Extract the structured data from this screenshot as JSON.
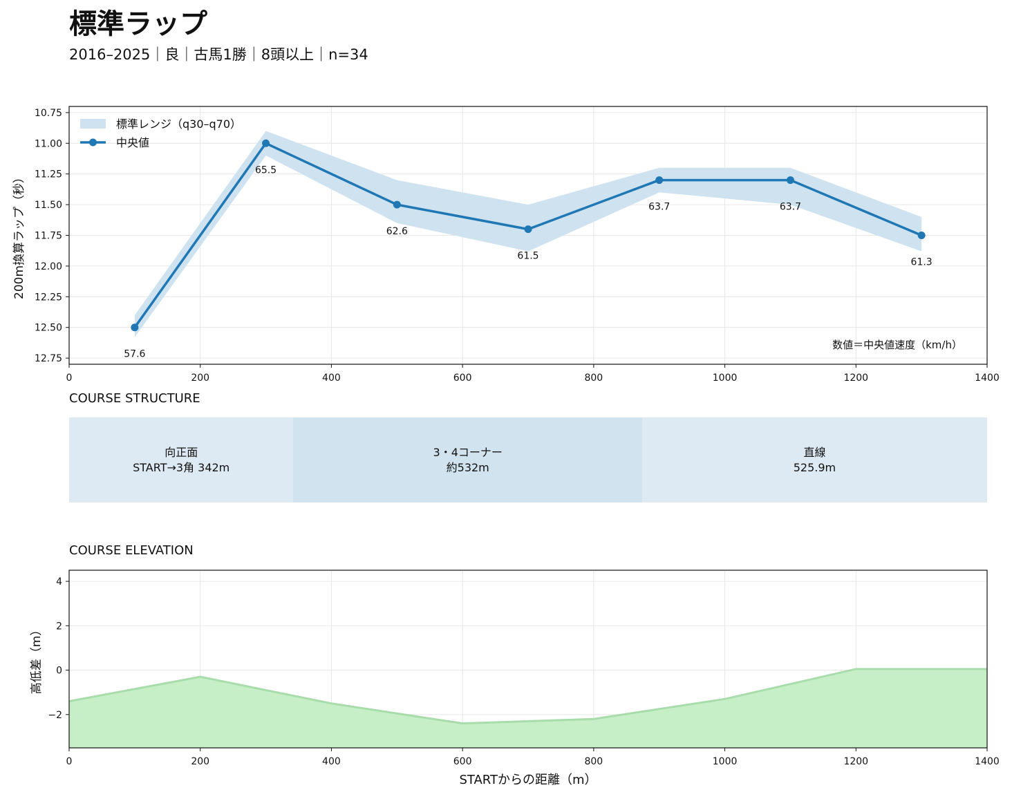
{
  "header": {
    "title": "標準ラップ",
    "subtitle": "2016–2025｜良｜古馬1勝｜8頭以上｜n=34"
  },
  "colors": {
    "line": "#1f77b4",
    "band": "#cfe2f0",
    "segment_light": "#ddeaf4",
    "segment_dark": "#d0e3ee",
    "elevation_fill": "#c6efc8",
    "elevation_line": "#a9dcab",
    "grid": "#e6e6e6"
  },
  "chart_data": [
    {
      "type": "line",
      "ylabel": "200m換算ラップ（秒）",
      "xlim": [
        0,
        1400
      ],
      "ylim": [
        10.7,
        12.8
      ],
      "y_inverted": true,
      "x_ticks": [
        "0",
        "200",
        "400",
        "600",
        "800",
        "1000",
        "1200",
        "1400"
      ],
      "y_ticks": [
        "10.75",
        "11.00",
        "11.25",
        "11.50",
        "11.75",
        "12.00",
        "12.25",
        "12.50",
        "12.75"
      ],
      "grid": true,
      "legend": {
        "placement": "top-left",
        "band_label": "標準レンジ（q30–q70）",
        "line_label": "中央値"
      },
      "annotation": "数値＝中央値速度（km/h）",
      "x": [
        100,
        300,
        500,
        700,
        900,
        1100,
        1300
      ],
      "median": [
        12.5,
        11.0,
        11.5,
        11.7,
        11.3,
        11.3,
        11.75
      ],
      "q30": [
        12.4,
        10.9,
        11.3,
        11.5,
        11.2,
        11.2,
        11.6
      ],
      "q70": [
        12.58,
        11.1,
        11.65,
        11.88,
        11.4,
        11.5,
        11.88
      ],
      "speed_labels": [
        "57.6",
        "65.5",
        "62.6",
        "61.5",
        "63.7",
        "63.7",
        "61.3"
      ]
    },
    {
      "type": "area",
      "title": "COURSE ELEVATION",
      "ylabel": "高低差（m）",
      "xlabel": "STARTからの距離（m）",
      "xlim": [
        0,
        1400
      ],
      "ylim": [
        -3.5,
        4.5
      ],
      "x_ticks": [
        "0",
        "200",
        "400",
        "600",
        "800",
        "1000",
        "1200",
        "1400"
      ],
      "y_ticks": [
        "4",
        "2",
        "0",
        "−2"
      ],
      "y_tick_values": [
        4,
        2,
        0,
        -2
      ],
      "grid": true,
      "x": [
        0,
        200,
        400,
        600,
        800,
        1000,
        1200,
        1400
      ],
      "y": [
        -1.4,
        -0.3,
        -1.5,
        -2.4,
        -2.2,
        -1.3,
        0.05,
        0.05
      ]
    }
  ],
  "course_structure": {
    "title": "COURSE STRUCTURE",
    "total_m": 1400,
    "segments": [
      {
        "name": "向正面",
        "detail": "START→3角 342m",
        "length_m": 342
      },
      {
        "name": "3・4コーナー",
        "detail": "約532m",
        "length_m": 532
      },
      {
        "name": "直線",
        "detail": "525.9m",
        "length_m": 525.9
      }
    ]
  }
}
